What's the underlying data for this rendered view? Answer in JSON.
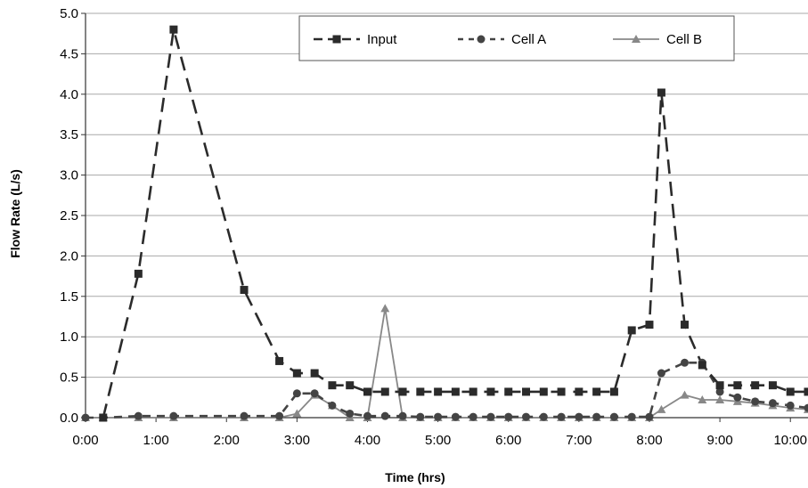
{
  "chart_data": {
    "type": "line",
    "title": "",
    "xlabel": "Time (hrs)",
    "ylabel": "Flow Rate  (L/s)",
    "xlim": [
      0,
      10.25
    ],
    "ylim": [
      0,
      5.0
    ],
    "grid": true,
    "legend_position": "top-right",
    "x_ticks": [
      0,
      1,
      2,
      3,
      4,
      5,
      6,
      7,
      8,
      9,
      10
    ],
    "x_tick_labels": [
      "0:00",
      "1:00",
      "2:00",
      "3:00",
      "4:00",
      "5:00",
      "6:00",
      "7:00",
      "8:00",
      "9:00",
      "10:00"
    ],
    "y_ticks": [
      0,
      0.5,
      1.0,
      1.5,
      2.0,
      2.5,
      3.0,
      3.5,
      4.0,
      4.5,
      5.0
    ],
    "y_tick_labels": [
      "0.0",
      "0.5",
      "1.0",
      "1.5",
      "2.0",
      "2.5",
      "3.0",
      "3.5",
      "4.0",
      "4.5",
      "5.0"
    ],
    "series": [
      {
        "name": "Input",
        "color": "#2b2b2b",
        "line_style": "dashed",
        "marker": "square",
        "x": [
          0.25,
          0.75,
          1.25,
          2.25,
          2.75,
          3.0,
          3.25,
          3.5,
          3.75,
          4.0,
          4.25,
          4.5,
          4.75,
          5.0,
          5.25,
          5.5,
          5.75,
          6.0,
          6.25,
          6.5,
          6.75,
          7.0,
          7.25,
          7.5,
          7.75,
          8.0,
          8.17,
          8.5,
          8.75,
          9.0,
          9.25,
          9.5,
          9.75,
          10.0,
          10.25
        ],
        "y": [
          0.0,
          1.78,
          4.8,
          1.58,
          0.7,
          0.55,
          0.55,
          0.4,
          0.4,
          0.32,
          0.32,
          0.32,
          0.32,
          0.32,
          0.32,
          0.32,
          0.32,
          0.32,
          0.32,
          0.32,
          0.32,
          0.32,
          0.32,
          0.32,
          1.08,
          1.15,
          4.02,
          1.15,
          0.65,
          0.4,
          0.4,
          0.4,
          0.4,
          0.32,
          0.32
        ]
      },
      {
        "name": "Cell A",
        "color": "#444444",
        "line_style": "dotted",
        "marker": "circle",
        "x": [
          0.0,
          0.25,
          0.75,
          1.25,
          2.25,
          2.75,
          3.0,
          3.25,
          3.5,
          3.75,
          4.0,
          4.25,
          4.5,
          4.75,
          5.0,
          5.25,
          5.5,
          5.75,
          6.0,
          6.25,
          6.5,
          6.75,
          7.0,
          7.25,
          7.5,
          7.75,
          8.0,
          8.17,
          8.5,
          8.75,
          9.0,
          9.25,
          9.5,
          9.75,
          10.0,
          10.25
        ],
        "y": [
          0.0,
          0.0,
          0.02,
          0.02,
          0.02,
          0.02,
          0.3,
          0.3,
          0.15,
          0.05,
          0.02,
          0.02,
          0.02,
          0.01,
          0.01,
          0.01,
          0.01,
          0.01,
          0.01,
          0.01,
          0.01,
          0.01,
          0.01,
          0.01,
          0.01,
          0.01,
          0.01,
          0.55,
          0.68,
          0.68,
          0.32,
          0.25,
          0.2,
          0.18,
          0.15,
          0.12
        ]
      },
      {
        "name": "Cell B",
        "color": "#888888",
        "line_style": "solid",
        "marker": "triangle",
        "x": [
          0.0,
          0.25,
          0.75,
          1.25,
          2.25,
          2.75,
          3.0,
          3.25,
          3.5,
          3.75,
          4.0,
          4.25,
          4.5,
          4.75,
          5.0,
          5.25,
          5.5,
          5.75,
          6.0,
          6.25,
          6.5,
          6.75,
          7.0,
          7.25,
          7.5,
          7.75,
          8.0,
          8.17,
          8.5,
          8.75,
          9.0,
          9.25,
          9.5,
          9.75,
          10.0,
          10.25
        ],
        "y": [
          0.0,
          0.0,
          0.0,
          0.0,
          0.0,
          0.0,
          0.05,
          0.28,
          0.15,
          0.0,
          0.0,
          1.35,
          0.0,
          0.0,
          0.0,
          0.0,
          0.0,
          0.0,
          0.0,
          0.0,
          0.0,
          0.0,
          0.0,
          0.0,
          0.0,
          0.0,
          0.0,
          0.1,
          0.28,
          0.22,
          0.22,
          0.2,
          0.18,
          0.15,
          0.12,
          0.1
        ]
      }
    ]
  }
}
